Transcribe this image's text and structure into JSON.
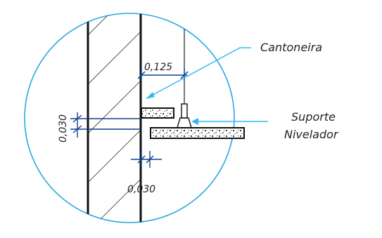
{
  "labels": {
    "cantoneira": "Cantoneira",
    "suporte": "Suporte",
    "nivelador": "Nivelador"
  },
  "dimensions": {
    "width_top": "0,125",
    "height_left": "0,030",
    "gap_bottom": "0,030"
  },
  "colors": {
    "circle": "#2aa7e0",
    "dimension": "#0d3f8f",
    "leader": "#33b8ee",
    "structure": "#111111",
    "hatch": "#333333"
  }
}
